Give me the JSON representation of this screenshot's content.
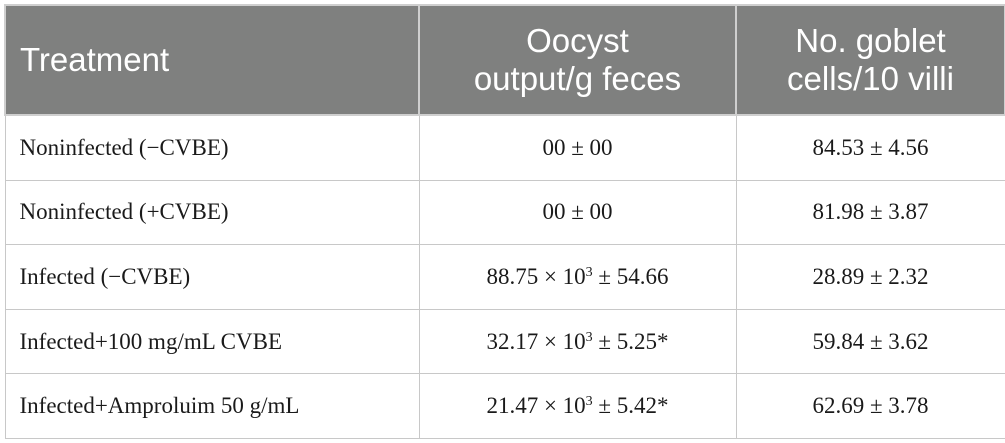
{
  "headers": {
    "treatment": "Treatment",
    "oocyst_line1": "Oocyst",
    "oocyst_line2": "output/g feces",
    "goblet_line1": "No. goblet",
    "goblet_line2": "cells/10 villi"
  },
  "rows": [
    {
      "treatment": "Noninfected (−CVBE)",
      "oocyst": "00 ± 00",
      "oocyst_exp": "",
      "oocyst_tail": "",
      "goblet": "84.53 ± 4.56"
    },
    {
      "treatment": "Noninfected (+CVBE)",
      "oocyst": "00 ± 00",
      "oocyst_exp": "",
      "oocyst_tail": "",
      "goblet": "81.98 ± 3.87"
    },
    {
      "treatment": "Infected (−CVBE)",
      "oocyst": "88.75 × 10",
      "oocyst_exp": "3",
      "oocyst_tail": " ± 54.66",
      "goblet": "28.89 ± 2.32"
    },
    {
      "treatment": "Infected+100 mg/mL CVBE",
      "oocyst": "32.17 × 10",
      "oocyst_exp": "3",
      "oocyst_tail": " ± 5.25*",
      "goblet": "59.84 ± 3.62"
    },
    {
      "treatment": "Infected+Amproluim 50 g/mL",
      "oocyst": "21.47 × 10",
      "oocyst_exp": "3",
      "oocyst_tail": " ± 5.42*",
      "goblet": "62.69 ± 3.78"
    }
  ]
}
